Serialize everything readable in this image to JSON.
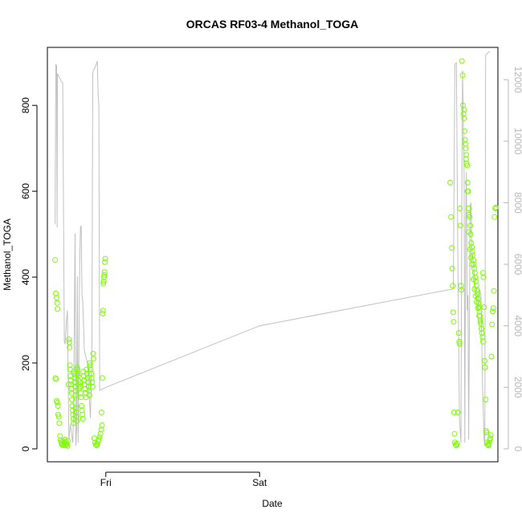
{
  "chart_data": {
    "type": "scatter",
    "title": "ORCAS RF03-4 Methanol_TOGA",
    "xlabel": "Date",
    "ylabel": "Methanol_TOGA",
    "x_unit": "days from Thursday 00:00",
    "xlim": [
      0.62,
      3.55
    ],
    "ylim": [
      -30,
      935
    ],
    "y2lim": [
      -420,
      13050
    ],
    "x_ticks": [
      {
        "value": 1.0,
        "label": "Fri"
      },
      {
        "value": 2.0,
        "label": "Sat"
      }
    ],
    "y_ticks": [
      0,
      200,
      400,
      600,
      800
    ],
    "y2_ticks": [
      0,
      2000,
      4000,
      6000,
      8000,
      10000,
      12000
    ],
    "grid": false,
    "legend": "none",
    "colors": {
      "points": "#7cfc00",
      "line": "#c0c0c0",
      "axis": "#000000",
      "right_axis": "#b8b8b8"
    },
    "series": [
      {
        "axis": "left",
        "style": "points",
        "points": [
          [
            0.67,
            440
          ],
          [
            0.675,
            362
          ],
          [
            0.68,
            352
          ],
          [
            0.683,
            340
          ],
          [
            0.686,
            326
          ],
          [
            0.672,
            165
          ],
          [
            0.676,
            162
          ],
          [
            0.68,
            112
          ],
          [
            0.684,
            108
          ],
          [
            0.689,
            100
          ],
          [
            0.69,
            80
          ],
          [
            0.694,
            75
          ],
          [
            0.698,
            60
          ],
          [
            0.702,
            30
          ],
          [
            0.706,
            20
          ],
          [
            0.71,
            15
          ],
          [
            0.714,
            10
          ],
          [
            0.718,
            12
          ],
          [
            0.722,
            18
          ],
          [
            0.726,
            8
          ],
          [
            0.73,
            14
          ],
          [
            0.734,
            22
          ],
          [
            0.738,
            9
          ],
          [
            0.742,
            16
          ],
          [
            0.746,
            11
          ],
          [
            0.75,
            7
          ],
          [
            0.754,
            19
          ],
          [
            0.757,
            150
          ],
          [
            0.76,
            255
          ],
          [
            0.762,
            248
          ],
          [
            0.764,
            236
          ],
          [
            0.766,
            195
          ],
          [
            0.768,
            185
          ],
          [
            0.77,
            170
          ],
          [
            0.772,
            160
          ],
          [
            0.774,
            150
          ],
          [
            0.776,
            140
          ],
          [
            0.778,
            130
          ],
          [
            0.78,
            115
          ],
          [
            0.782,
            100
          ],
          [
            0.784,
            90
          ],
          [
            0.786,
            80
          ],
          [
            0.788,
            70
          ],
          [
            0.79,
            60
          ],
          [
            0.792,
            180
          ],
          [
            0.794,
            175
          ],
          [
            0.796,
            165
          ],
          [
            0.798,
            155
          ],
          [
            0.8,
            145
          ],
          [
            0.802,
            135
          ],
          [
            0.804,
            125
          ],
          [
            0.806,
            95
          ],
          [
            0.808,
            85
          ],
          [
            0.81,
            75
          ],
          [
            0.812,
            65
          ],
          [
            0.814,
            190
          ],
          [
            0.816,
            185
          ],
          [
            0.818,
            175
          ],
          [
            0.82,
            170
          ],
          [
            0.822,
            160
          ],
          [
            0.824,
            150
          ],
          [
            0.826,
            140
          ],
          [
            0.83,
            155
          ],
          [
            0.833,
            145
          ],
          [
            0.836,
            130
          ],
          [
            0.839,
            120
          ],
          [
            0.842,
            100
          ],
          [
            0.845,
            90
          ],
          [
            0.848,
            80
          ],
          [
            0.851,
            70
          ],
          [
            0.854,
            180
          ],
          [
            0.857,
            170
          ],
          [
            0.86,
            160
          ],
          [
            0.863,
            150
          ],
          [
            0.866,
            140
          ],
          [
            0.869,
            130
          ],
          [
            0.872,
            120
          ],
          [
            0.875,
            185
          ],
          [
            0.878,
            175
          ],
          [
            0.881,
            165
          ],
          [
            0.884,
            155
          ],
          [
            0.887,
            145
          ],
          [
            0.89,
            135
          ],
          [
            0.893,
            125
          ],
          [
            0.896,
            200
          ],
          [
            0.899,
            195
          ],
          [
            0.902,
            185
          ],
          [
            0.905,
            175
          ],
          [
            0.908,
            165
          ],
          [
            0.911,
            155
          ],
          [
            0.914,
            145
          ],
          [
            0.917,
            222
          ],
          [
            0.92,
            210
          ],
          [
            0.925,
            25
          ],
          [
            0.93,
            15
          ],
          [
            0.935,
            10
          ],
          [
            0.94,
            8
          ],
          [
            0.945,
            12
          ],
          [
            0.95,
            18
          ],
          [
            0.955,
            22
          ],
          [
            0.96,
            28
          ],
          [
            0.965,
            35
          ],
          [
            0.97,
            45
          ],
          [
            0.975,
            55
          ],
          [
            0.972,
            85
          ],
          [
            0.977,
            165
          ],
          [
            0.98,
            315
          ],
          [
            0.982,
            322
          ],
          [
            0.984,
            385
          ],
          [
            0.986,
            390
          ],
          [
            0.988,
            400
          ],
          [
            0.99,
            405
          ],
          [
            0.992,
            412
          ],
          [
            0.994,
            435
          ],
          [
            0.996,
            443
          ],
          [
            3.24,
            620
          ],
          [
            3.245,
            540
          ],
          [
            3.25,
            468
          ],
          [
            3.253,
            420
          ],
          [
            3.256,
            380
          ],
          [
            3.259,
            318
          ],
          [
            3.262,
            296
          ],
          [
            3.265,
            85
          ],
          [
            3.268,
            35
          ],
          [
            3.27,
            15
          ],
          [
            3.275,
            10
          ],
          [
            3.28,
            8
          ],
          [
            3.285,
            12
          ],
          [
            3.29,
            85
          ],
          [
            3.295,
            270
          ],
          [
            3.298,
            250
          ],
          [
            3.3,
            245
          ],
          [
            3.303,
            560
          ],
          [
            3.306,
            520
          ],
          [
            3.31,
            380
          ],
          [
            3.313,
            370
          ],
          [
            3.316,
            903
          ],
          [
            3.32,
            870
          ],
          [
            3.323,
            800
          ],
          [
            3.326,
            780
          ],
          [
            3.33,
            770
          ],
          [
            3.333,
            740
          ],
          [
            3.336,
            720
          ],
          [
            3.34,
            700
          ],
          [
            3.343,
            675
          ],
          [
            3.346,
            665
          ],
          [
            3.35,
            660
          ],
          [
            3.353,
            620
          ],
          [
            3.356,
            600
          ],
          [
            3.36,
            560
          ],
          [
            3.363,
            545
          ],
          [
            3.366,
            540
          ],
          [
            3.37,
            520
          ],
          [
            3.373,
            500
          ],
          [
            3.376,
            480
          ],
          [
            3.38,
            470
          ],
          [
            3.383,
            460
          ],
          [
            3.386,
            450
          ],
          [
            3.39,
            440
          ],
          [
            3.393,
            430
          ],
          [
            3.396,
            420
          ],
          [
            3.4,
            410
          ],
          [
            3.403,
            400
          ],
          [
            3.406,
            390
          ],
          [
            3.41,
            380
          ],
          [
            3.413,
            370
          ],
          [
            3.416,
            360
          ],
          [
            3.42,
            350
          ],
          [
            3.423,
            340
          ],
          [
            3.426,
            330
          ],
          [
            3.43,
            320
          ],
          [
            3.433,
            310
          ],
          [
            3.436,
            300
          ],
          [
            3.44,
            290
          ],
          [
            3.443,
            280
          ],
          [
            3.446,
            270
          ],
          [
            3.45,
            260
          ],
          [
            3.453,
            250
          ],
          [
            3.33,
            790
          ],
          [
            3.338,
            710
          ],
          [
            3.345,
            685
          ],
          [
            3.352,
            600
          ],
          [
            3.36,
            505
          ],
          [
            3.368,
            465
          ],
          [
            3.375,
            445
          ],
          [
            3.382,
            430
          ],
          [
            3.39,
            395
          ],
          [
            3.398,
            372
          ],
          [
            3.405,
            356
          ],
          [
            3.412,
            342
          ],
          [
            3.42,
            328
          ],
          [
            3.428,
            310
          ],
          [
            3.436,
            295
          ],
          [
            3.444,
            280
          ],
          [
            3.452,
            410
          ],
          [
            3.456,
            400
          ],
          [
            3.46,
            330
          ],
          [
            3.463,
            205
          ],
          [
            3.466,
            190
          ],
          [
            3.47,
            115
          ],
          [
            3.473,
            42
          ],
          [
            3.476,
            38
          ],
          [
            3.48,
            15
          ],
          [
            3.484,
            10
          ],
          [
            3.488,
            8
          ],
          [
            3.492,
            12
          ],
          [
            3.496,
            20
          ],
          [
            3.5,
            25
          ],
          [
            3.504,
            32
          ],
          [
            3.508,
            215
          ],
          [
            3.512,
            290
          ],
          [
            3.516,
            320
          ],
          [
            3.52,
            328
          ],
          [
            3.524,
            368
          ],
          [
            3.528,
            540
          ],
          [
            3.532,
            560
          ],
          [
            3.536,
            562
          ]
        ]
      },
      {
        "axis": "right",
        "style": "line",
        "points": [
          [
            0.67,
            7300
          ],
          [
            0.675,
            12500
          ],
          [
            0.68,
            12450
          ],
          [
            0.683,
            7200
          ],
          [
            0.686,
            12200
          ],
          [
            0.69,
            12150
          ],
          [
            0.7,
            12050
          ],
          [
            0.71,
            11950
          ],
          [
            0.72,
            11900
          ],
          [
            0.73,
            3500
          ],
          [
            0.735,
            3400
          ],
          [
            0.74,
            3800
          ],
          [
            0.745,
            4200
          ],
          [
            0.75,
            4500
          ],
          [
            0.76,
            300
          ],
          [
            0.77,
            800
          ],
          [
            0.78,
            400
          ],
          [
            0.785,
            200
          ],
          [
            0.79,
            1000
          ],
          [
            0.8,
            7000
          ],
          [
            0.805,
            100
          ],
          [
            0.81,
            600
          ],
          [
            0.815,
            5600
          ],
          [
            0.82,
            200
          ],
          [
            0.83,
            6000
          ],
          [
            0.835,
            7200
          ],
          [
            0.84,
            7250
          ],
          [
            0.845,
            5000
          ],
          [
            0.85,
            4800
          ],
          [
            0.86,
            3200
          ],
          [
            0.87,
            3000
          ],
          [
            0.88,
            2800
          ],
          [
            0.9,
            1000
          ],
          [
            0.91,
            3500
          ],
          [
            0.915,
            12200
          ],
          [
            0.92,
            12300
          ],
          [
            0.93,
            12400
          ],
          [
            0.935,
            12450
          ],
          [
            0.94,
            12550
          ],
          [
            0.945,
            12600
          ],
          [
            0.95,
            11500
          ],
          [
            0.955,
            11200
          ],
          [
            0.96,
            1900
          ],
          [
            1.0,
            2000
          ],
          [
            2.0,
            4000
          ],
          [
            3.26,
            5200
          ],
          [
            3.27,
            12500
          ],
          [
            3.28,
            12550
          ],
          [
            3.29,
            6000
          ],
          [
            3.3,
            1000
          ],
          [
            3.31,
            200
          ],
          [
            3.315,
            8000
          ],
          [
            3.32,
            12300
          ],
          [
            3.33,
            9000
          ],
          [
            3.335,
            200
          ],
          [
            3.34,
            7000
          ],
          [
            3.345,
            9000
          ],
          [
            3.35,
            4500
          ],
          [
            3.355,
            5000
          ],
          [
            3.36,
            300
          ],
          [
            3.37,
            7900
          ],
          [
            3.375,
            8000
          ],
          [
            3.38,
            6500
          ],
          [
            3.39,
            6000
          ],
          [
            3.4,
            5500
          ],
          [
            3.41,
            5000
          ],
          [
            3.42,
            4500
          ],
          [
            3.43,
            5200
          ],
          [
            3.44,
            5000
          ],
          [
            3.45,
            2000
          ],
          [
            3.46,
            300
          ],
          [
            3.465,
            100
          ],
          [
            3.47,
            12800
          ],
          [
            3.48,
            12850
          ],
          [
            3.49,
            12900
          ],
          [
            3.5,
            12900
          ]
        ]
      }
    ]
  }
}
